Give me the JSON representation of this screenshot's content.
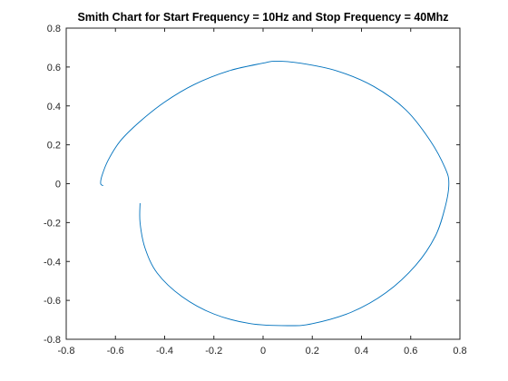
{
  "chart_data": {
    "type": "line",
    "title": "Smith Chart for Start Frequency = 10Hz and Stop Frequency = 40Mhz",
    "xlabel": "",
    "ylabel": "",
    "xlim": [
      -0.8,
      0.8
    ],
    "ylim": [
      -0.8,
      0.8
    ],
    "xticks": [
      "-0.8",
      "-0.6",
      "-0.4",
      "-0.2",
      "0",
      "0.2",
      "0.4",
      "0.6",
      "0.8"
    ],
    "yticks": [
      "0.8",
      "0.6",
      "0.4",
      "0.2",
      "0",
      "-0.2",
      "-0.4",
      "-0.6",
      "-0.8"
    ],
    "grid": false,
    "series": [
      {
        "color": "#0072BD",
        "points": [
          [
            -0.65,
            -0.01
          ],
          [
            -0.66,
            0.0
          ],
          [
            -0.655,
            0.04
          ],
          [
            -0.63,
            0.12
          ],
          [
            -0.58,
            0.22
          ],
          [
            -0.5,
            0.32
          ],
          [
            -0.4,
            0.42
          ],
          [
            -0.28,
            0.51
          ],
          [
            -0.14,
            0.58
          ],
          [
            0.0,
            0.62
          ],
          [
            0.05,
            0.63
          ],
          [
            0.15,
            0.62
          ],
          [
            0.3,
            0.58
          ],
          [
            0.45,
            0.5
          ],
          [
            0.58,
            0.38
          ],
          [
            0.68,
            0.22
          ],
          [
            0.74,
            0.08
          ],
          [
            0.755,
            0.0
          ],
          [
            0.74,
            -0.12
          ],
          [
            0.7,
            -0.27
          ],
          [
            0.62,
            -0.42
          ],
          [
            0.5,
            -0.56
          ],
          [
            0.36,
            -0.66
          ],
          [
            0.2,
            -0.72
          ],
          [
            0.1,
            -0.73
          ],
          [
            -0.05,
            -0.72
          ],
          [
            -0.2,
            -0.67
          ],
          [
            -0.33,
            -0.58
          ],
          [
            -0.43,
            -0.46
          ],
          [
            -0.48,
            -0.33
          ],
          [
            -0.5,
            -0.2
          ],
          [
            -0.5,
            -0.1
          ]
        ]
      }
    ]
  }
}
